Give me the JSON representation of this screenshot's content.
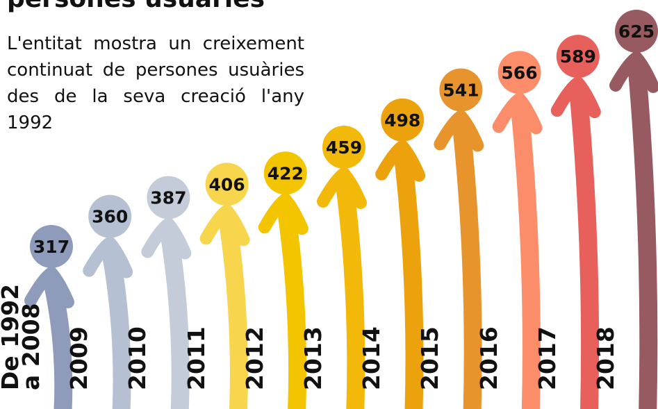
{
  "chart_data": {
    "type": "arrow",
    "title": "persones usuàries",
    "subtitle": "L'entitat mostra un creixement continuat de persones usuàries des de la seva creació l'any 1992",
    "categories": [
      "De 1992\na 2008",
      "2009",
      "2010",
      "2011",
      "2012",
      "2013",
      "2014",
      "2015",
      "2016",
      "2017",
      "2018"
    ],
    "values": [
      317,
      360,
      387,
      406,
      422,
      459,
      498,
      541,
      566,
      589,
      625
    ],
    "colors": [
      "#8e9bbb",
      "#b6c0d3",
      "#c4cbd9",
      "#f7d64e",
      "#f3c500",
      "#f2b90a",
      "#eca20c",
      "#e8942c",
      "#fb8d6b",
      "#e7605c",
      "#975a60"
    ]
  }
}
